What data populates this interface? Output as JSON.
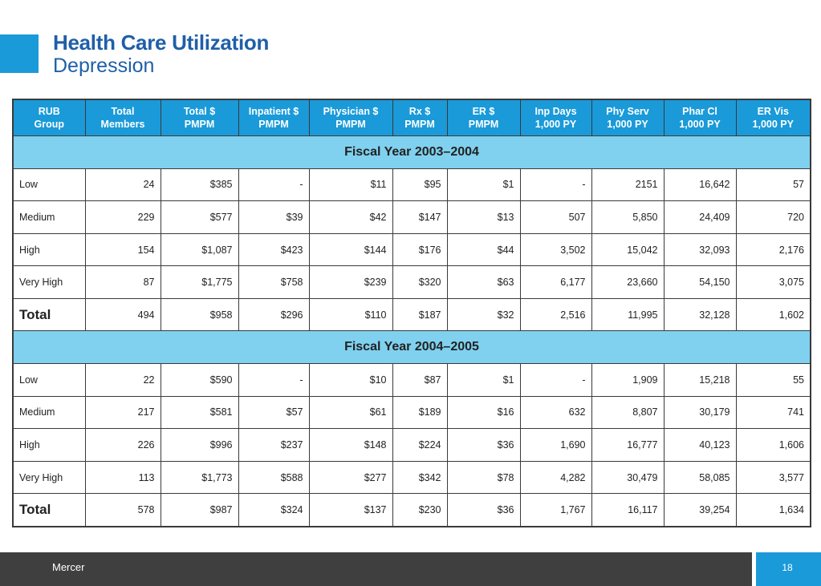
{
  "header": {
    "title": "Health Care Utilization",
    "subtitle": "Depression",
    "accent_color": "#1a9ad9",
    "title_color": "#1f5fa8"
  },
  "table": {
    "columns": [
      [
        "RUB",
        "Group"
      ],
      [
        "Total",
        "Members"
      ],
      [
        "Total $",
        "PMPM"
      ],
      [
        "Inpatient $",
        "PMPM"
      ],
      [
        "Physician $",
        "PMPM"
      ],
      [
        "Rx $",
        "PMPM"
      ],
      [
        "ER $",
        "PMPM"
      ],
      [
        "Inp Days",
        "1,000 PY"
      ],
      [
        "Phy Serv",
        "1,000 PY"
      ],
      [
        "Phar Cl",
        "1,000 PY"
      ],
      [
        "ER Vis",
        "1,000 PY"
      ]
    ],
    "header_color": "#1a9ad9",
    "section_color": "#7fd1ef",
    "sections": [
      {
        "label": "Fiscal Year 2003–2004",
        "rows": [
          [
            "Low",
            "24",
            "$385",
            "-",
            "$11",
            "$95",
            "$1",
            "-",
            "2151",
            "16,642",
            "57"
          ],
          [
            "Medium",
            "229",
            "$577",
            "$39",
            "$42",
            "$147",
            "$13",
            "507",
            "5,850",
            "24,409",
            "720"
          ],
          [
            "High",
            "154",
            "$1,087",
            "$423",
            "$144",
            "$176",
            "$44",
            "3,502",
            "15,042",
            "32,093",
            "2,176"
          ],
          [
            "Very High",
            "87",
            "$1,775",
            "$758",
            "$239",
            "$320",
            "$63",
            "6,177",
            "23,660",
            "54,150",
            "3,075"
          ]
        ],
        "total": [
          "Total",
          "494",
          "$958",
          "$296",
          "$110",
          "$187",
          "$32",
          "2,516",
          "11,995",
          "32,128",
          "1,602"
        ]
      },
      {
        "label": "Fiscal Year 2004–2005",
        "rows": [
          [
            "Low",
            "22",
            "$590",
            "-",
            "$10",
            "$87",
            "$1",
            "-",
            "1,909",
            "15,218",
            "55"
          ],
          [
            "Medium",
            "217",
            "$581",
            "$57",
            "$61",
            "$189",
            "$16",
            "632",
            "8,807",
            "30,179",
            "741"
          ],
          [
            "High",
            "226",
            "$996",
            "$237",
            "$148",
            "$224",
            "$36",
            "1,690",
            "16,777",
            "40,123",
            "1,606"
          ],
          [
            "Very High",
            "113",
            "$1,773",
            "$588",
            "$277",
            "$342",
            "$78",
            "4,282",
            "30,479",
            "58,085",
            "3,577"
          ]
        ],
        "total": [
          "Total",
          "578",
          "$987",
          "$324",
          "$137",
          "$230",
          "$36",
          "1,767",
          "16,117",
          "39,254",
          "1,634"
        ]
      }
    ]
  },
  "footer": {
    "company": "Mercer",
    "page_number": "18",
    "bar_color": "#3f3f3f"
  }
}
